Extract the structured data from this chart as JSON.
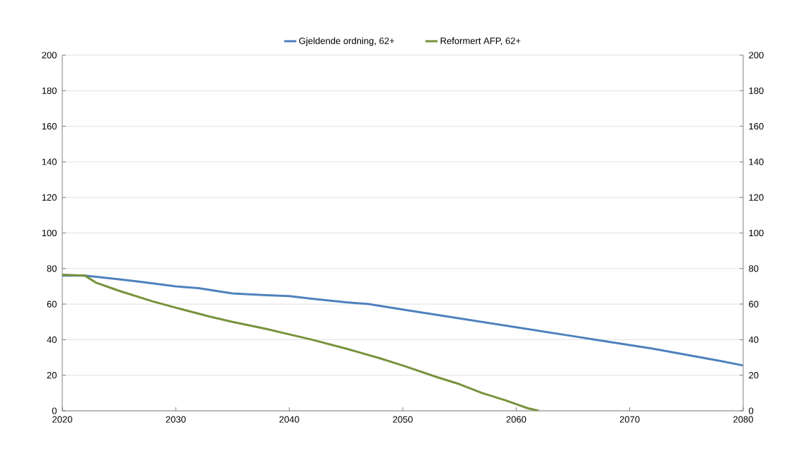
{
  "chart_data": {
    "type": "line",
    "x": [
      2020,
      2022,
      2025,
      2027,
      2030,
      2032,
      2035,
      2038,
      2040,
      2042,
      2045,
      2047,
      2050,
      2055,
      2060,
      2065,
      2067,
      2070,
      2072,
      2075,
      2078,
      2080
    ],
    "series": [
      {
        "name": "Gjeldende ordning, 62+",
        "color": "#4f81bd",
        "values": [
          76,
          76,
          74,
          72.5,
          70,
          69,
          66,
          65,
          64.5,
          63,
          61,
          60,
          57,
          52,
          47,
          42,
          40,
          37,
          35,
          31.5,
          28,
          25.5
        ]
      },
      {
        "name": "Reformert AFP, 62+",
        "color": "#77933c",
        "x": [
          2020,
          2022,
          2023,
          2025,
          2028,
          2030,
          2033,
          2035,
          2038,
          2040,
          2042,
          2045,
          2048,
          2050,
          2053,
          2055,
          2057,
          2059,
          2061,
          2062
        ],
        "values": [
          76.5,
          76,
          72,
          67.5,
          61.5,
          58,
          53,
          50,
          46,
          43,
          40,
          35,
          29.5,
          25.5,
          19,
          15,
          10,
          6,
          1.5,
          0
        ]
      }
    ],
    "xlim": [
      2020,
      2080
    ],
    "xticks": [
      2020,
      2030,
      2040,
      2050,
      2060,
      2070,
      2080
    ],
    "ylim": [
      0,
      200
    ],
    "yticks": [
      0,
      20,
      40,
      60,
      80,
      100,
      120,
      140,
      160,
      180,
      200
    ],
    "y2lim": [
      0,
      200
    ],
    "y2ticks": [
      0,
      20,
      40,
      60,
      80,
      100,
      120,
      140,
      160,
      180,
      200
    ],
    "grid": "y",
    "legend": "top",
    "marker": "none",
    "line_style": "solid"
  }
}
